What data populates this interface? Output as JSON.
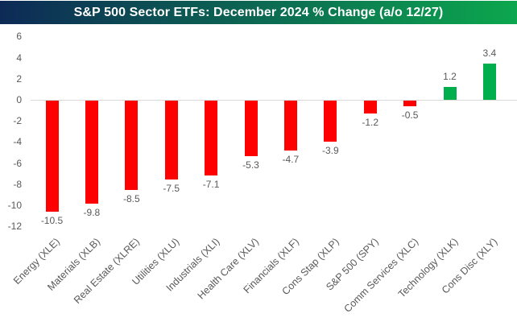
{
  "title": "S&P 500 Sector ETFs: December 2024 % Change (a/o 12/27)",
  "colors": {
    "title_gradient_left": "#0D2A56",
    "title_gradient_right": "#0CA74E",
    "title_text": "#FFFFFF",
    "negative_bar": "#FF0000",
    "positive_bar": "#00AE4E",
    "axis_line": "#D9D9D9",
    "label_gray": "#595959"
  },
  "chart_data": {
    "type": "bar",
    "title": "S&P 500 Sector ETFs: December 2024 % Change (a/o 12/27)",
    "categories": [
      "Energy (XLE)",
      "Materials (XLB)",
      "Real Estate (XLRE)",
      "Utilities (XLU)",
      "Industrials (XLI)",
      "Health Care (XLV)",
      "Financials (XLF)",
      "Cons Stap (XLP)",
      "S&P 500 (SPY)",
      "Comm Services (XLC)",
      "Technology (XLK)",
      "Cons Disc (XLY)"
    ],
    "values": [
      -10.5,
      -9.8,
      -8.5,
      -7.5,
      -7.1,
      -5.3,
      -4.7,
      -3.9,
      -1.2,
      -0.5,
      1.2,
      3.4
    ],
    "data_labels": [
      "-10.5",
      "-9.8",
      "-8.5",
      "-7.5",
      "-7.1",
      "-5.3",
      "-4.7",
      "-3.9",
      "-1.2",
      "-0.5",
      "1.2",
      "3.4"
    ],
    "xlabel": "",
    "ylabel": "",
    "ylim": [
      -12,
      6
    ],
    "yticks": [
      6,
      4,
      2,
      0,
      -2,
      -4,
      -6,
      -8,
      -10,
      -12
    ],
    "grid": false,
    "legend": false,
    "bar_color_rule": "red if negative, green if positive"
  }
}
